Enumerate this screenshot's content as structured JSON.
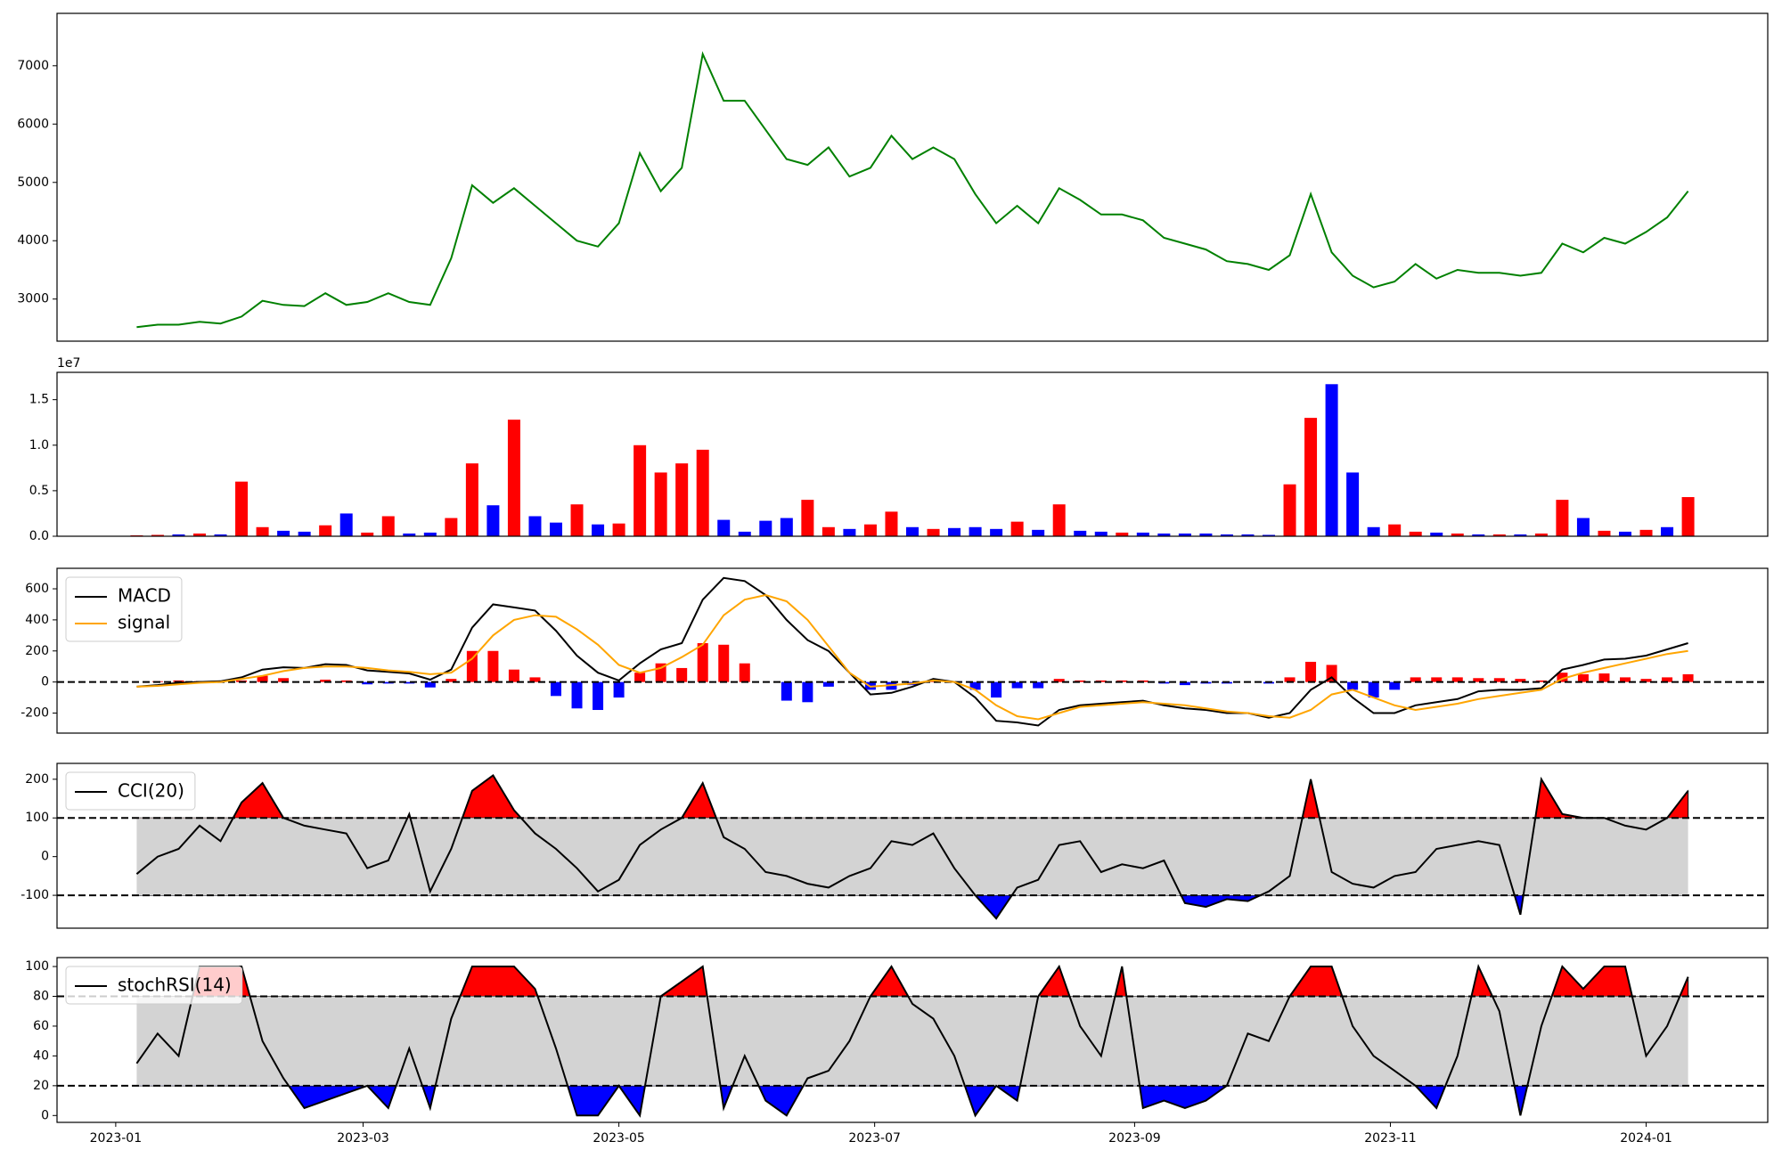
{
  "chart_data": [
    {
      "type": "line",
      "color": "green",
      "x": [
        "2023-01-06",
        "2023-01-11",
        "2023-01-16",
        "2023-01-21",
        "2023-01-26",
        "2023-01-31",
        "2023-02-05",
        "2023-02-10",
        "2023-02-15",
        "2023-02-20",
        "2023-02-25",
        "2023-03-02",
        "2023-03-07",
        "2023-03-12",
        "2023-03-17",
        "2023-03-22",
        "2023-03-27",
        "2023-04-01",
        "2023-04-06",
        "2023-04-11",
        "2023-04-16",
        "2023-04-21",
        "2023-04-26",
        "2023-05-01",
        "2023-05-06",
        "2023-05-11",
        "2023-05-16",
        "2023-05-21",
        "2023-05-26",
        "2023-05-31",
        "2023-06-05",
        "2023-06-10",
        "2023-06-15",
        "2023-06-20",
        "2023-06-25",
        "2023-06-30",
        "2023-07-05",
        "2023-07-10",
        "2023-07-15",
        "2023-07-20",
        "2023-07-25",
        "2023-07-30",
        "2023-08-04",
        "2023-08-09",
        "2023-08-14",
        "2023-08-19",
        "2023-08-24",
        "2023-08-29",
        "2023-09-03",
        "2023-09-08",
        "2023-09-13",
        "2023-09-18",
        "2023-09-23",
        "2023-09-28",
        "2023-10-03",
        "2023-10-08",
        "2023-10-13",
        "2023-10-18",
        "2023-10-23",
        "2023-10-28",
        "2023-11-02",
        "2023-11-07",
        "2023-11-12",
        "2023-11-17",
        "2023-11-22",
        "2023-11-27",
        "2023-12-02",
        "2023-12-07",
        "2023-12-12",
        "2023-12-17",
        "2023-12-22",
        "2023-12-27",
        "2024-01-01",
        "2024-01-06",
        "2024-01-11"
      ],
      "values": [
        2520,
        2560,
        2560,
        2610,
        2580,
        2700,
        2970,
        2900,
        2880,
        3100,
        2900,
        2950,
        3100,
        2950,
        2900,
        3700,
        4950,
        4650,
        4900,
        4600,
        4300,
        4000,
        3900,
        4300,
        5500,
        4850,
        5250,
        7200,
        6400,
        6400,
        5900,
        5400,
        5300,
        5600,
        5100,
        5250,
        5800,
        5400,
        5600,
        5400,
        4800,
        4300,
        4600,
        4300,
        4900,
        4700,
        4450,
        4450,
        4350,
        4050,
        3950,
        3850,
        3650,
        3600,
        3500,
        3750,
        4800,
        3800,
        3400,
        3200,
        3300,
        3600,
        3350,
        3500,
        3450,
        3450,
        3400,
        3450,
        3950,
        3800,
        4050,
        3950,
        4150,
        4400,
        4850
      ],
      "xlim": [
        "2022-12-18",
        "2024-01-30"
      ],
      "ylim": [
        2278,
        7898
      ],
      "yticks": [
        3000,
        4000,
        5000,
        6000,
        7000
      ]
    },
    {
      "type": "bar",
      "offset_text": "1e7",
      "values": [
        100000,
        150000,
        200000,
        300000,
        200000,
        6000000,
        1000000,
        600000,
        500000,
        1200000,
        2500000,
        400000,
        2200000,
        300000,
        400000,
        2000000,
        8000000,
        3400000,
        12800000,
        2200000,
        1500000,
        3500000,
        1300000,
        1400000,
        10000000,
        7000000,
        8000000,
        9500000,
        1800000,
        500000,
        1700000,
        2000000,
        4000000,
        1000000,
        800000,
        1300000,
        2700000,
        1000000,
        800000,
        900000,
        1000000,
        800000,
        1600000,
        700000,
        3500000,
        600000,
        500000,
        400000,
        400000,
        300000,
        300000,
        300000,
        200000,
        200000,
        150000,
        5700000,
        13000000,
        16700000,
        7000000,
        1000000,
        1300000,
        500000,
        400000,
        300000,
        200000,
        200000,
        200000,
        300000,
        4000000,
        2000000,
        600000,
        500000,
        700000,
        1000000,
        4300000
      ],
      "colors": [
        "red",
        "red",
        "blue",
        "red",
        "blue",
        "red",
        "red",
        "blue",
        "blue",
        "red",
        "blue",
        "red",
        "red",
        "blue",
        "blue",
        "red",
        "red",
        "blue",
        "red",
        "blue",
        "blue",
        "red",
        "blue",
        "red",
        "red",
        "red",
        "red",
        "red",
        "blue",
        "blue",
        "blue",
        "blue",
        "red",
        "red",
        "blue",
        "red",
        "red",
        "blue",
        "red",
        "blue",
        "blue",
        "blue",
        "red",
        "blue",
        "red",
        "blue",
        "blue",
        "red",
        "blue",
        "blue",
        "blue",
        "blue",
        "blue",
        "blue",
        "blue",
        "red",
        "red",
        "blue",
        "blue",
        "blue",
        "red",
        "red",
        "blue",
        "red",
        "blue",
        "red",
        "blue",
        "red",
        "red",
        "blue",
        "red",
        "blue",
        "red",
        "blue",
        "red"
      ],
      "ylim": [
        0,
        18000000
      ],
      "yticks": [
        {
          "value": 0,
          "label": "0.0"
        },
        {
          "value": 5000000,
          "label": "0.5"
        },
        {
          "value": 10000000,
          "label": "1.0"
        },
        {
          "value": 15000000,
          "label": "1.5"
        }
      ]
    },
    {
      "type": "macd",
      "series": [
        {
          "name": "MACD",
          "color": "black",
          "values": [
            -30,
            -20,
            -5,
            0,
            5,
            30,
            80,
            95,
            90,
            115,
            110,
            75,
            65,
            55,
            15,
            80,
            350,
            500,
            480,
            460,
            330,
            170,
            60,
            10,
            120,
            210,
            250,
            530,
            670,
            650,
            560,
            400,
            270,
            200,
            60,
            -80,
            -70,
            -30,
            20,
            0,
            -100,
            -250,
            -260,
            -280,
            -180,
            -150,
            -140,
            -130,
            -120,
            -150,
            -170,
            -180,
            -200,
            -200,
            -230,
            -200,
            -50,
            30,
            -100,
            -200,
            -200,
            -150,
            -130,
            -110,
            -60,
            -50,
            -50,
            -40,
            80,
            110,
            145,
            150,
            170,
            210,
            250
          ]
        },
        {
          "name": "signal",
          "color": "orange",
          "values": [
            -30,
            -25,
            -15,
            -5,
            0,
            20,
            40,
            70,
            90,
            100,
            100,
            90,
            75,
            65,
            50,
            60,
            150,
            300,
            400,
            430,
            420,
            340,
            240,
            110,
            60,
            90,
            160,
            240,
            430,
            530,
            560,
            520,
            400,
            230,
            60,
            -30,
            -20,
            -10,
            10,
            0,
            -50,
            -150,
            -220,
            -240,
            -200,
            -160,
            -150,
            -140,
            -130,
            -140,
            -150,
            -170,
            -190,
            -200,
            -220,
            -230,
            -180,
            -80,
            -50,
            -100,
            -150,
            -180,
            -160,
            -140,
            -110,
            -90,
            -70,
            -50,
            20,
            60,
            90,
            120,
            150,
            180,
            200
          ]
        }
      ],
      "histogram": {
        "positive_color": "red",
        "negative_color": "blue",
        "values": [
          0,
          5,
          10,
          5,
          5,
          10,
          40,
          25,
          0,
          15,
          10,
          -15,
          -10,
          -10,
          -35,
          20,
          200,
          200,
          80,
          30,
          -90,
          -170,
          -180,
          -100,
          60,
          120,
          90,
          250,
          240,
          120,
          0,
          -120,
          -130,
          -30,
          0,
          -50,
          -50,
          -20,
          10,
          0,
          -50,
          -100,
          -40,
          -40,
          20,
          10,
          10,
          10,
          10,
          -10,
          -20,
          -10,
          -10,
          0,
          -10,
          30,
          130,
          110,
          -50,
          -100,
          -50,
          30,
          30,
          30,
          25,
          25,
          20,
          10,
          60,
          50,
          55,
          30,
          20,
          30,
          50
        ]
      },
      "hlines": [
        0
      ],
      "ylim": [
        -329,
        732
      ],
      "yticks": [
        -200,
        0,
        200,
        400,
        600
      ],
      "legend": "upper-left"
    },
    {
      "type": "oscillator",
      "series": [
        {
          "name": "CCI(20)",
          "color": "black",
          "values": [
            -45,
            0,
            20,
            80,
            40,
            140,
            190,
            100,
            80,
            70,
            60,
            -30,
            -10,
            110,
            -90,
            20,
            170,
            210,
            120,
            60,
            20,
            -30,
            -90,
            -60,
            30,
            70,
            100,
            190,
            50,
            20,
            -40,
            -50,
            -70,
            -80,
            -50,
            -30,
            40,
            30,
            60,
            -30,
            -100,
            -160,
            -80,
            -60,
            30,
            40,
            -40,
            -20,
            -30,
            -10,
            -120,
            -130,
            -110,
            -115,
            -90,
            -50,
            200,
            -40,
            -70,
            -80,
            -50,
            -40,
            20,
            30,
            40,
            30,
            -150,
            200,
            110,
            100,
            100,
            80,
            70,
            100,
            170
          ]
        }
      ],
      "hlines": [
        -100,
        100
      ],
      "band_color": "lightgray",
      "upper_color": "red",
      "lower_color": "blue",
      "ylim": [
        -185,
        241
      ],
      "yticks": [
        -100,
        0,
        100,
        200
      ],
      "legend": "upper-left"
    },
    {
      "type": "oscillator",
      "series": [
        {
          "name": "stochRSI(14)",
          "color": "black",
          "values": [
            35,
            55,
            40,
            100,
            100,
            100,
            50,
            25,
            5,
            10,
            15,
            20,
            5,
            45,
            5,
            65,
            100,
            100,
            100,
            85,
            45,
            0,
            0,
            20,
            0,
            80,
            90,
            100,
            5,
            40,
            10,
            0,
            25,
            30,
            50,
            80,
            100,
            75,
            65,
            40,
            0,
            20,
            10,
            80,
            100,
            60,
            40,
            100,
            5,
            10,
            5,
            10,
            20,
            55,
            50,
            80,
            100,
            100,
            60,
            40,
            30,
            20,
            5,
            40,
            100,
            70,
            0,
            60,
            100,
            85,
            100,
            100,
            40,
            60,
            93
          ]
        }
      ],
      "hlines": [
        20,
        80
      ],
      "band_color": "lightgray",
      "upper_color": "red",
      "lower_color": "blue",
      "ylim": [
        -4.6,
        106
      ],
      "yticks": [
        0,
        20,
        40,
        60,
        80,
        100
      ],
      "legend": "upper-left",
      "xticks": [
        "2023-01",
        "2023-03",
        "2023-05",
        "2023-07",
        "2023-09",
        "2023-11",
        "2024-01"
      ]
    }
  ]
}
